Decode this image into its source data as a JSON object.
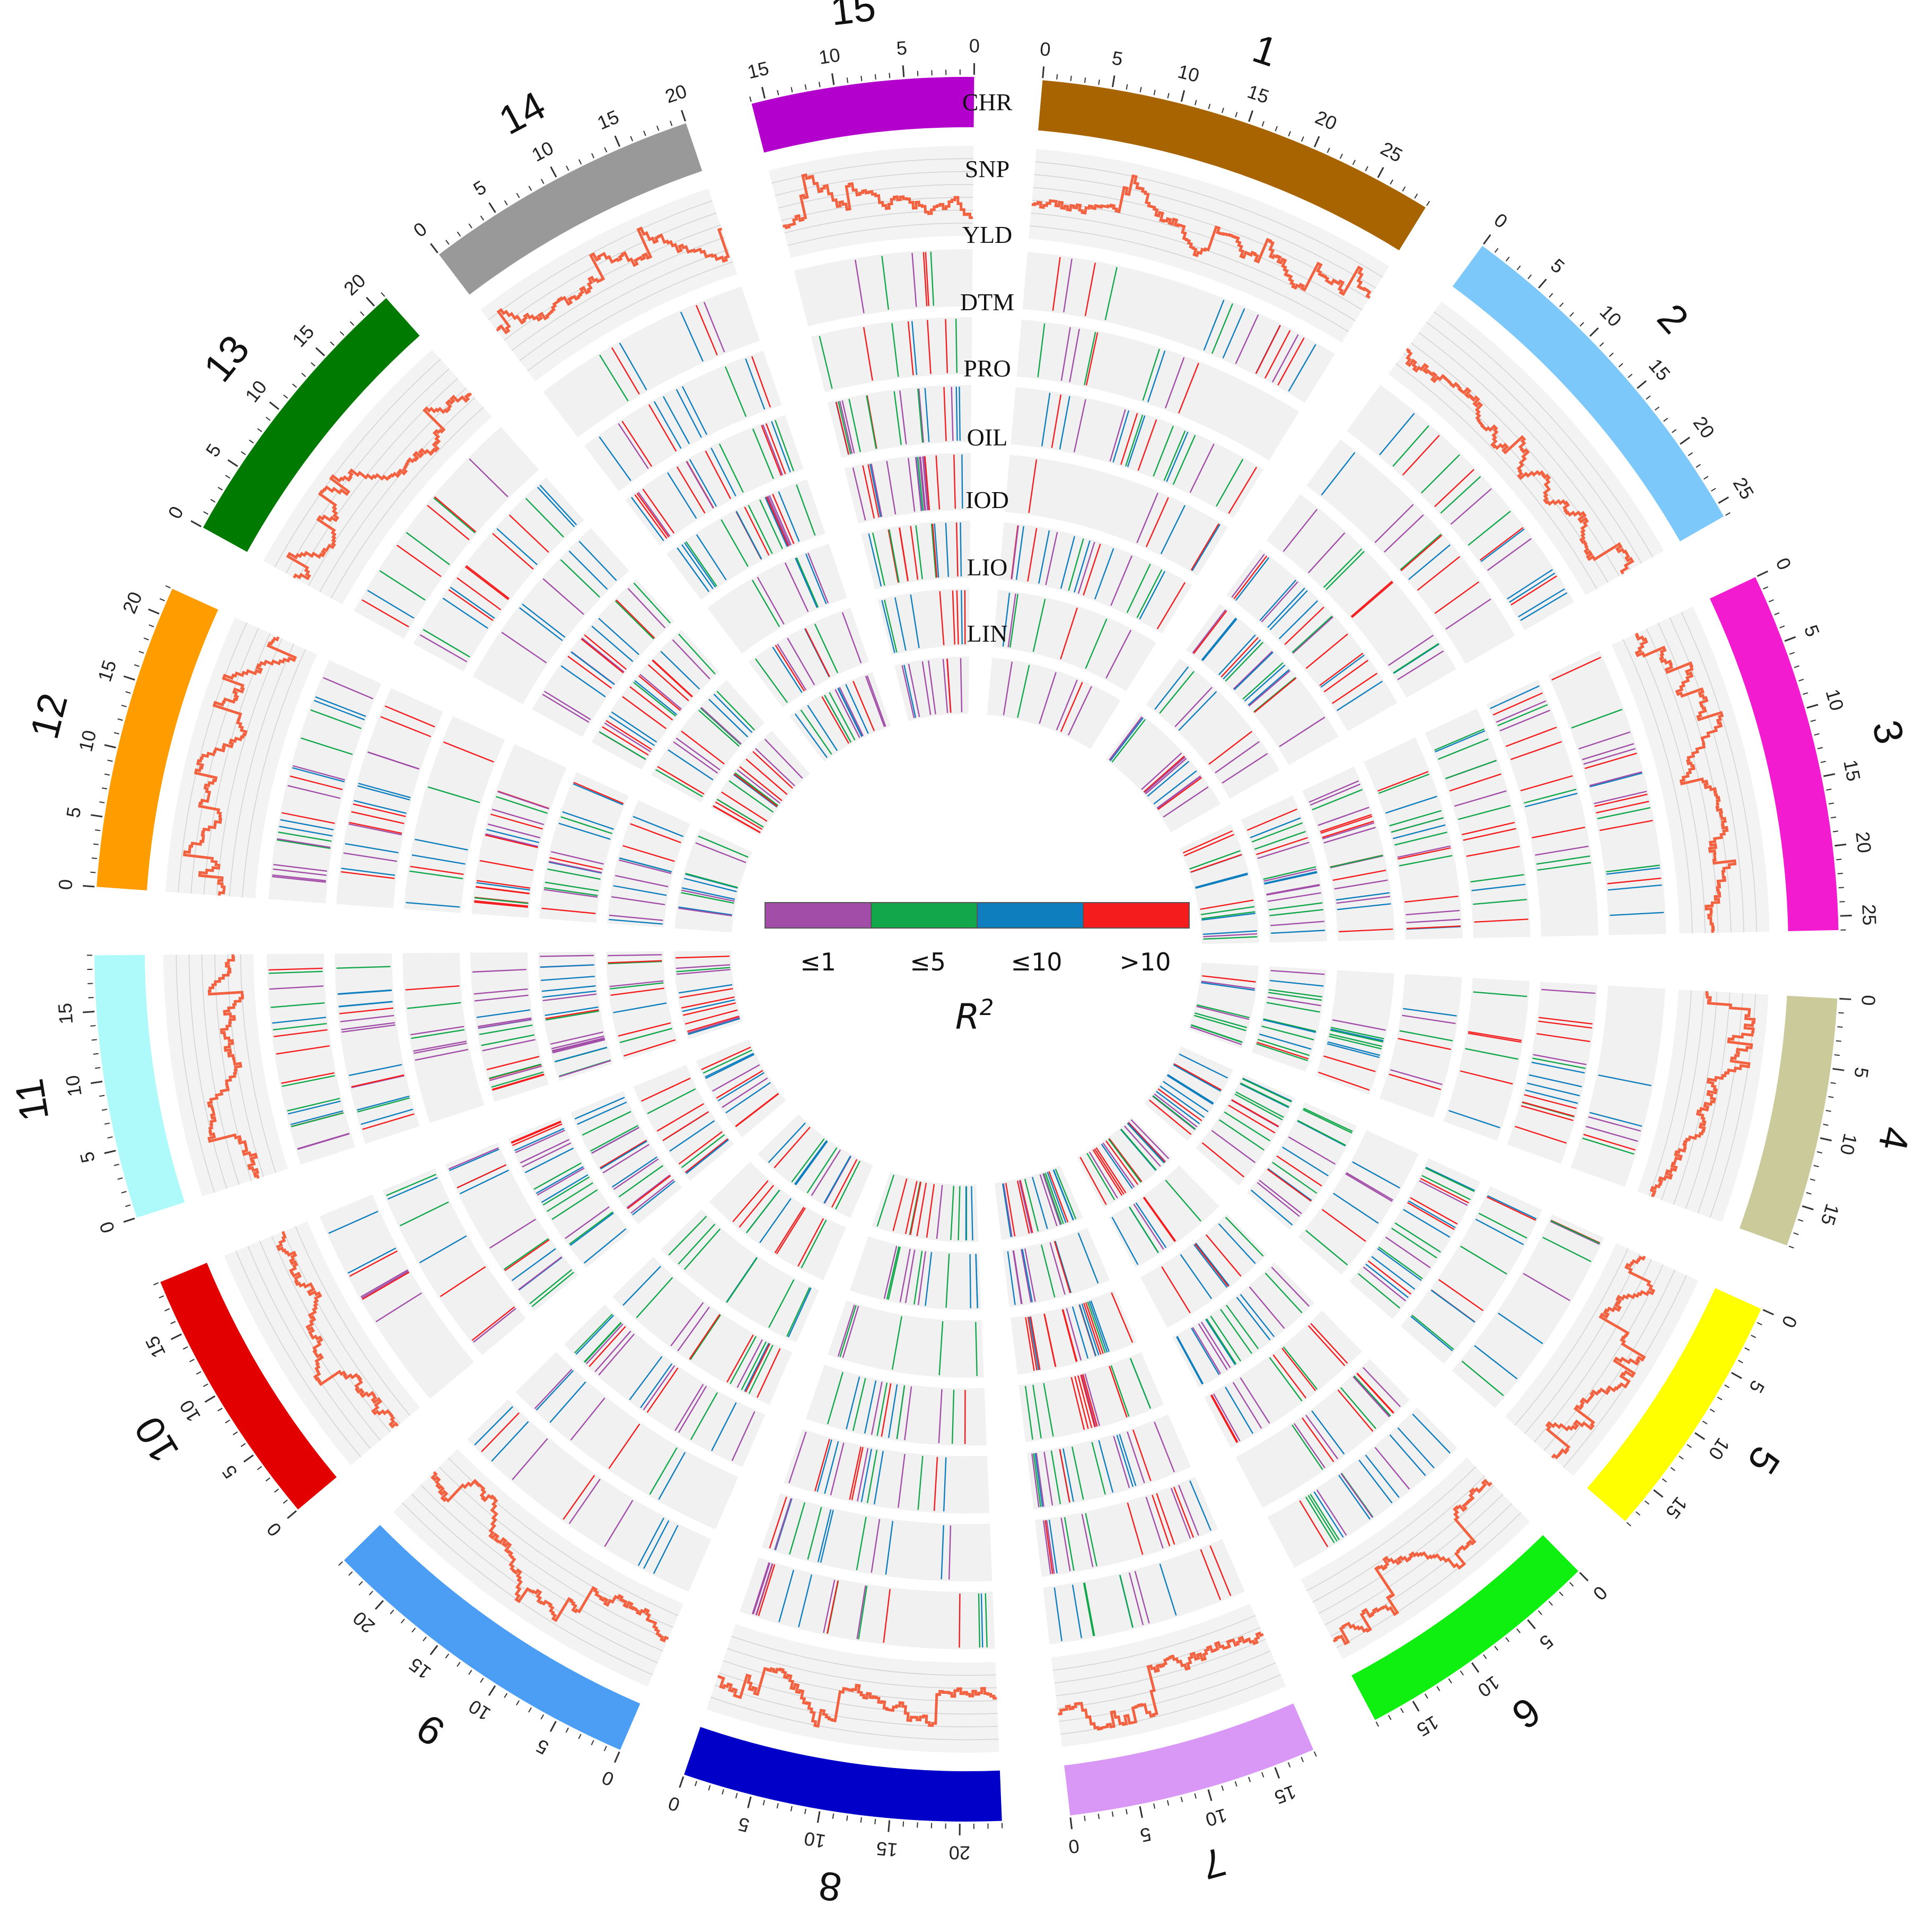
{
  "chromosomes": [
    {
      "label": "1",
      "length": 29,
      "color": "#A86400"
    },
    {
      "label": "2",
      "length": 26,
      "color": "#7DC8FA"
    },
    {
      "label": "3",
      "length": 26,
      "color": "#F31BD0"
    },
    {
      "label": "4",
      "length": 18,
      "color": "#CACA9A"
    },
    {
      "label": "5",
      "length": 18,
      "color": "#FFFF00"
    },
    {
      "label": "6",
      "length": 18,
      "color": "#10F010"
    },
    {
      "label": "7",
      "length": 18,
      "color": "#DA98F6"
    },
    {
      "label": "8",
      "length": 23,
      "color": "#0000C8"
    },
    {
      "label": "9",
      "length": 24,
      "color": "#4B9EF4"
    },
    {
      "label": "10",
      "length": 19,
      "color": "#E20000"
    },
    {
      "label": "11",
      "length": 19,
      "color": "#AEFAFA"
    },
    {
      "label": "12",
      "length": 22,
      "color": "#FE9C00"
    },
    {
      "label": "13",
      "length": 21,
      "color": "#007A00"
    },
    {
      "label": "14",
      "length": 20,
      "color": "#999999"
    },
    {
      "label": "15",
      "length": 16,
      "color": "#B300CC"
    }
  ],
  "tracks": [
    "CHR",
    "SNP",
    "YLD",
    "DTM",
    "PRO",
    "OIL",
    "IOD",
    "LIO",
    "LIN"
  ],
  "snp_line_color": "#F26241",
  "legend": {
    "title": "R",
    "title_superscript": "2",
    "items": [
      {
        "label": "≤1",
        "color": "#A24EA8"
      },
      {
        "label": "≤5",
        "color": "#12A74A"
      },
      {
        "label": "≤10",
        "color": "#0E7EBE"
      },
      {
        "label": ">10",
        "color": "#F41C1C"
      }
    ]
  }
}
